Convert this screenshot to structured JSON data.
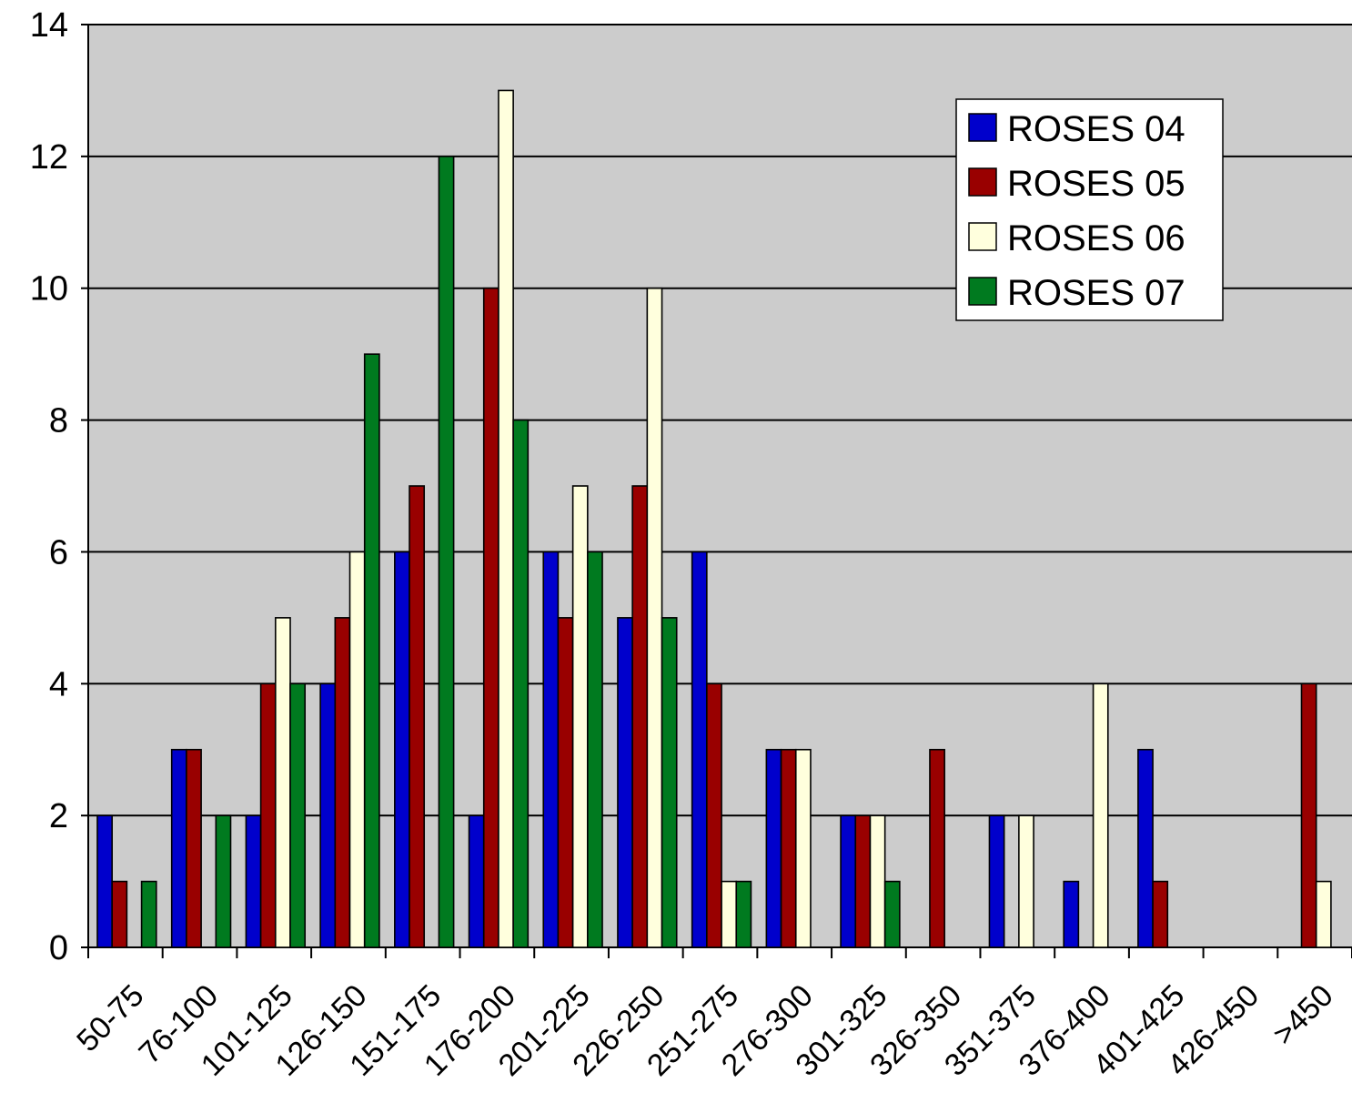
{
  "chart_data": {
    "type": "bar",
    "title": "",
    "xlabel": "",
    "ylabel": "",
    "ylim": [
      0,
      14
    ],
    "yticks": [
      "0",
      "2",
      "4",
      "6",
      "8",
      "10",
      "12",
      "14"
    ],
    "grid": "horizontal",
    "legend_position": "top-right",
    "categories": [
      "50-75",
      "76-100",
      "101-125",
      "126-150",
      "151-175",
      "176-200",
      "201-225",
      "226-250",
      "251-275",
      "276-300",
      "301-325",
      "326-350",
      "351-375",
      "376-400",
      "401-425",
      "426-450",
      ">450"
    ],
    "series": [
      {
        "name": "ROSES 04",
        "color": "#0000CC",
        "values": [
          2,
          3,
          2,
          4,
          6,
          2,
          6,
          5,
          6,
          3,
          2,
          0,
          2,
          1,
          3,
          0,
          0
        ]
      },
      {
        "name": "ROSES 05",
        "color": "#990000",
        "values": [
          1,
          3,
          4,
          5,
          7,
          10,
          5,
          7,
          4,
          3,
          2,
          3,
          0,
          0,
          1,
          0,
          4
        ]
      },
      {
        "name": "ROSES 06",
        "color": "#FFFFDD",
        "values": [
          0,
          0,
          5,
          6,
          0,
          13,
          7,
          10,
          1,
          3,
          2,
          0,
          2,
          4,
          0,
          0,
          1
        ]
      },
      {
        "name": "ROSES 07",
        "color": "#007A1F",
        "values": [
          1,
          2,
          4,
          9,
          12,
          8,
          6,
          5,
          1,
          0,
          1,
          0,
          0,
          0,
          0,
          0,
          0
        ]
      }
    ],
    "plot_background": "#CCCCCC"
  }
}
